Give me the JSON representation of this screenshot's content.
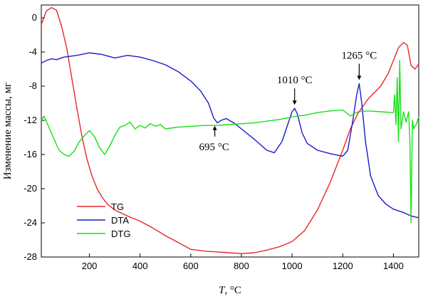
{
  "chart_data": {
    "type": "line",
    "title": "",
    "xlabel": "T, °C",
    "ylabel": "Изменение массы, мг",
    "xlim": [
      10,
      1500
    ],
    "ylim": [
      -28,
      1.5
    ],
    "x_ticks": [
      200,
      400,
      600,
      800,
      1000,
      1200,
      1400
    ],
    "y_ticks": [
      0,
      -4,
      -8,
      -12,
      -16,
      -20,
      -24,
      -28
    ],
    "grid": false,
    "legend_position": "bottom-left",
    "series": [
      {
        "name": "TG",
        "color": "#e8262a",
        "x": [
          10,
          30,
          50,
          70,
          90,
          110,
          130,
          150,
          170,
          190,
          210,
          230,
          250,
          270,
          300,
          350,
          400,
          450,
          500,
          550,
          600,
          650,
          700,
          750,
          800,
          850,
          900,
          950,
          1000,
          1050,
          1100,
          1150,
          1200,
          1230,
          1260,
          1300,
          1350,
          1380,
          1400,
          1420,
          1440,
          1455,
          1470,
          1485,
          1500
        ],
        "values": [
          -0.8,
          0.8,
          1.2,
          0.9,
          -1.0,
          -3.5,
          -7.0,
          -10.5,
          -13.8,
          -16.5,
          -18.5,
          -20.0,
          -21.0,
          -21.8,
          -22.5,
          -23.2,
          -23.8,
          -24.6,
          -25.5,
          -26.3,
          -27.1,
          -27.3,
          -27.4,
          -27.5,
          -27.6,
          -27.5,
          -27.2,
          -26.8,
          -26.2,
          -24.9,
          -22.5,
          -19.3,
          -15.5,
          -13.0,
          -11.2,
          -9.5,
          -8.0,
          -6.5,
          -5.0,
          -3.5,
          -2.9,
          -3.2,
          -5.6,
          -6.0,
          -5.4
        ]
      },
      {
        "name": "DTA",
        "color": "#1a1acb",
        "x": [
          10,
          30,
          50,
          70,
          100,
          150,
          200,
          250,
          300,
          350,
          400,
          450,
          500,
          550,
          600,
          640,
          670,
          690,
          705,
          720,
          740,
          770,
          800,
          850,
          900,
          930,
          960,
          985,
          1000,
          1010,
          1020,
          1040,
          1060,
          1100,
          1150,
          1200,
          1220,
          1240,
          1255,
          1265,
          1275,
          1290,
          1310,
          1340,
          1370,
          1400,
          1440,
          1470,
          1500
        ],
        "values": [
          -5.3,
          -5.0,
          -4.8,
          -4.9,
          -4.6,
          -4.4,
          -4.1,
          -4.3,
          -4.7,
          -4.4,
          -4.6,
          -5.0,
          -5.5,
          -6.3,
          -7.4,
          -8.6,
          -10.0,
          -11.7,
          -12.3,
          -12.0,
          -11.8,
          -12.3,
          -13.0,
          -14.2,
          -15.5,
          -15.8,
          -14.5,
          -12.3,
          -11.0,
          -10.6,
          -11.2,
          -13.5,
          -14.7,
          -15.5,
          -15.9,
          -16.2,
          -15.5,
          -12.0,
          -9.0,
          -7.7,
          -10.0,
          -14.5,
          -18.5,
          -20.8,
          -21.8,
          -22.4,
          -22.8,
          -23.2,
          -23.4
        ]
      },
      {
        "name": "DTG",
        "color": "#17e017",
        "x": [
          10,
          20,
          40,
          60,
          80,
          100,
          120,
          140,
          160,
          180,
          200,
          220,
          240,
          260,
          280,
          300,
          320,
          340,
          360,
          380,
          400,
          420,
          440,
          460,
          480,
          500,
          550,
          600,
          650,
          700,
          750,
          800,
          850,
          900,
          950,
          1000,
          1050,
          1100,
          1150,
          1200,
          1230,
          1260,
          1300,
          1350,
          1400,
          1405,
          1410,
          1415,
          1420,
          1425,
          1430,
          1440,
          1450,
          1460,
          1465,
          1470,
          1475,
          1480,
          1490,
          1500
        ],
        "values": [
          -12.0,
          -11.5,
          -12.8,
          -14.2,
          -15.5,
          -16.0,
          -16.2,
          -15.6,
          -14.5,
          -13.8,
          -13.2,
          -13.9,
          -15.2,
          -16.0,
          -15.0,
          -13.8,
          -12.8,
          -12.6,
          -12.2,
          -13.0,
          -12.6,
          -12.9,
          -12.4,
          -12.7,
          -12.5,
          -13.0,
          -12.8,
          -12.7,
          -12.6,
          -12.6,
          -12.5,
          -12.4,
          -12.3,
          -12.1,
          -11.9,
          -11.6,
          -11.4,
          -11.1,
          -10.9,
          -10.8,
          -11.5,
          -11.0,
          -10.9,
          -11.0,
          -11.1,
          -9.0,
          -12.5,
          -7.0,
          -14.5,
          -5.0,
          -13.0,
          -11.0,
          -12.2,
          -11.0,
          -14.5,
          -24.0,
          -12.0,
          -13.0,
          -12.5,
          -11.6
        ]
      }
    ],
    "annotations": [
      {
        "text": "695 °C",
        "x": 695,
        "y": -12.4
      },
      {
        "text": "1010 °C",
        "x": 1010,
        "y": -10.6
      },
      {
        "text": "1265 °C",
        "x": 1265,
        "y": -7.7
      }
    ]
  }
}
